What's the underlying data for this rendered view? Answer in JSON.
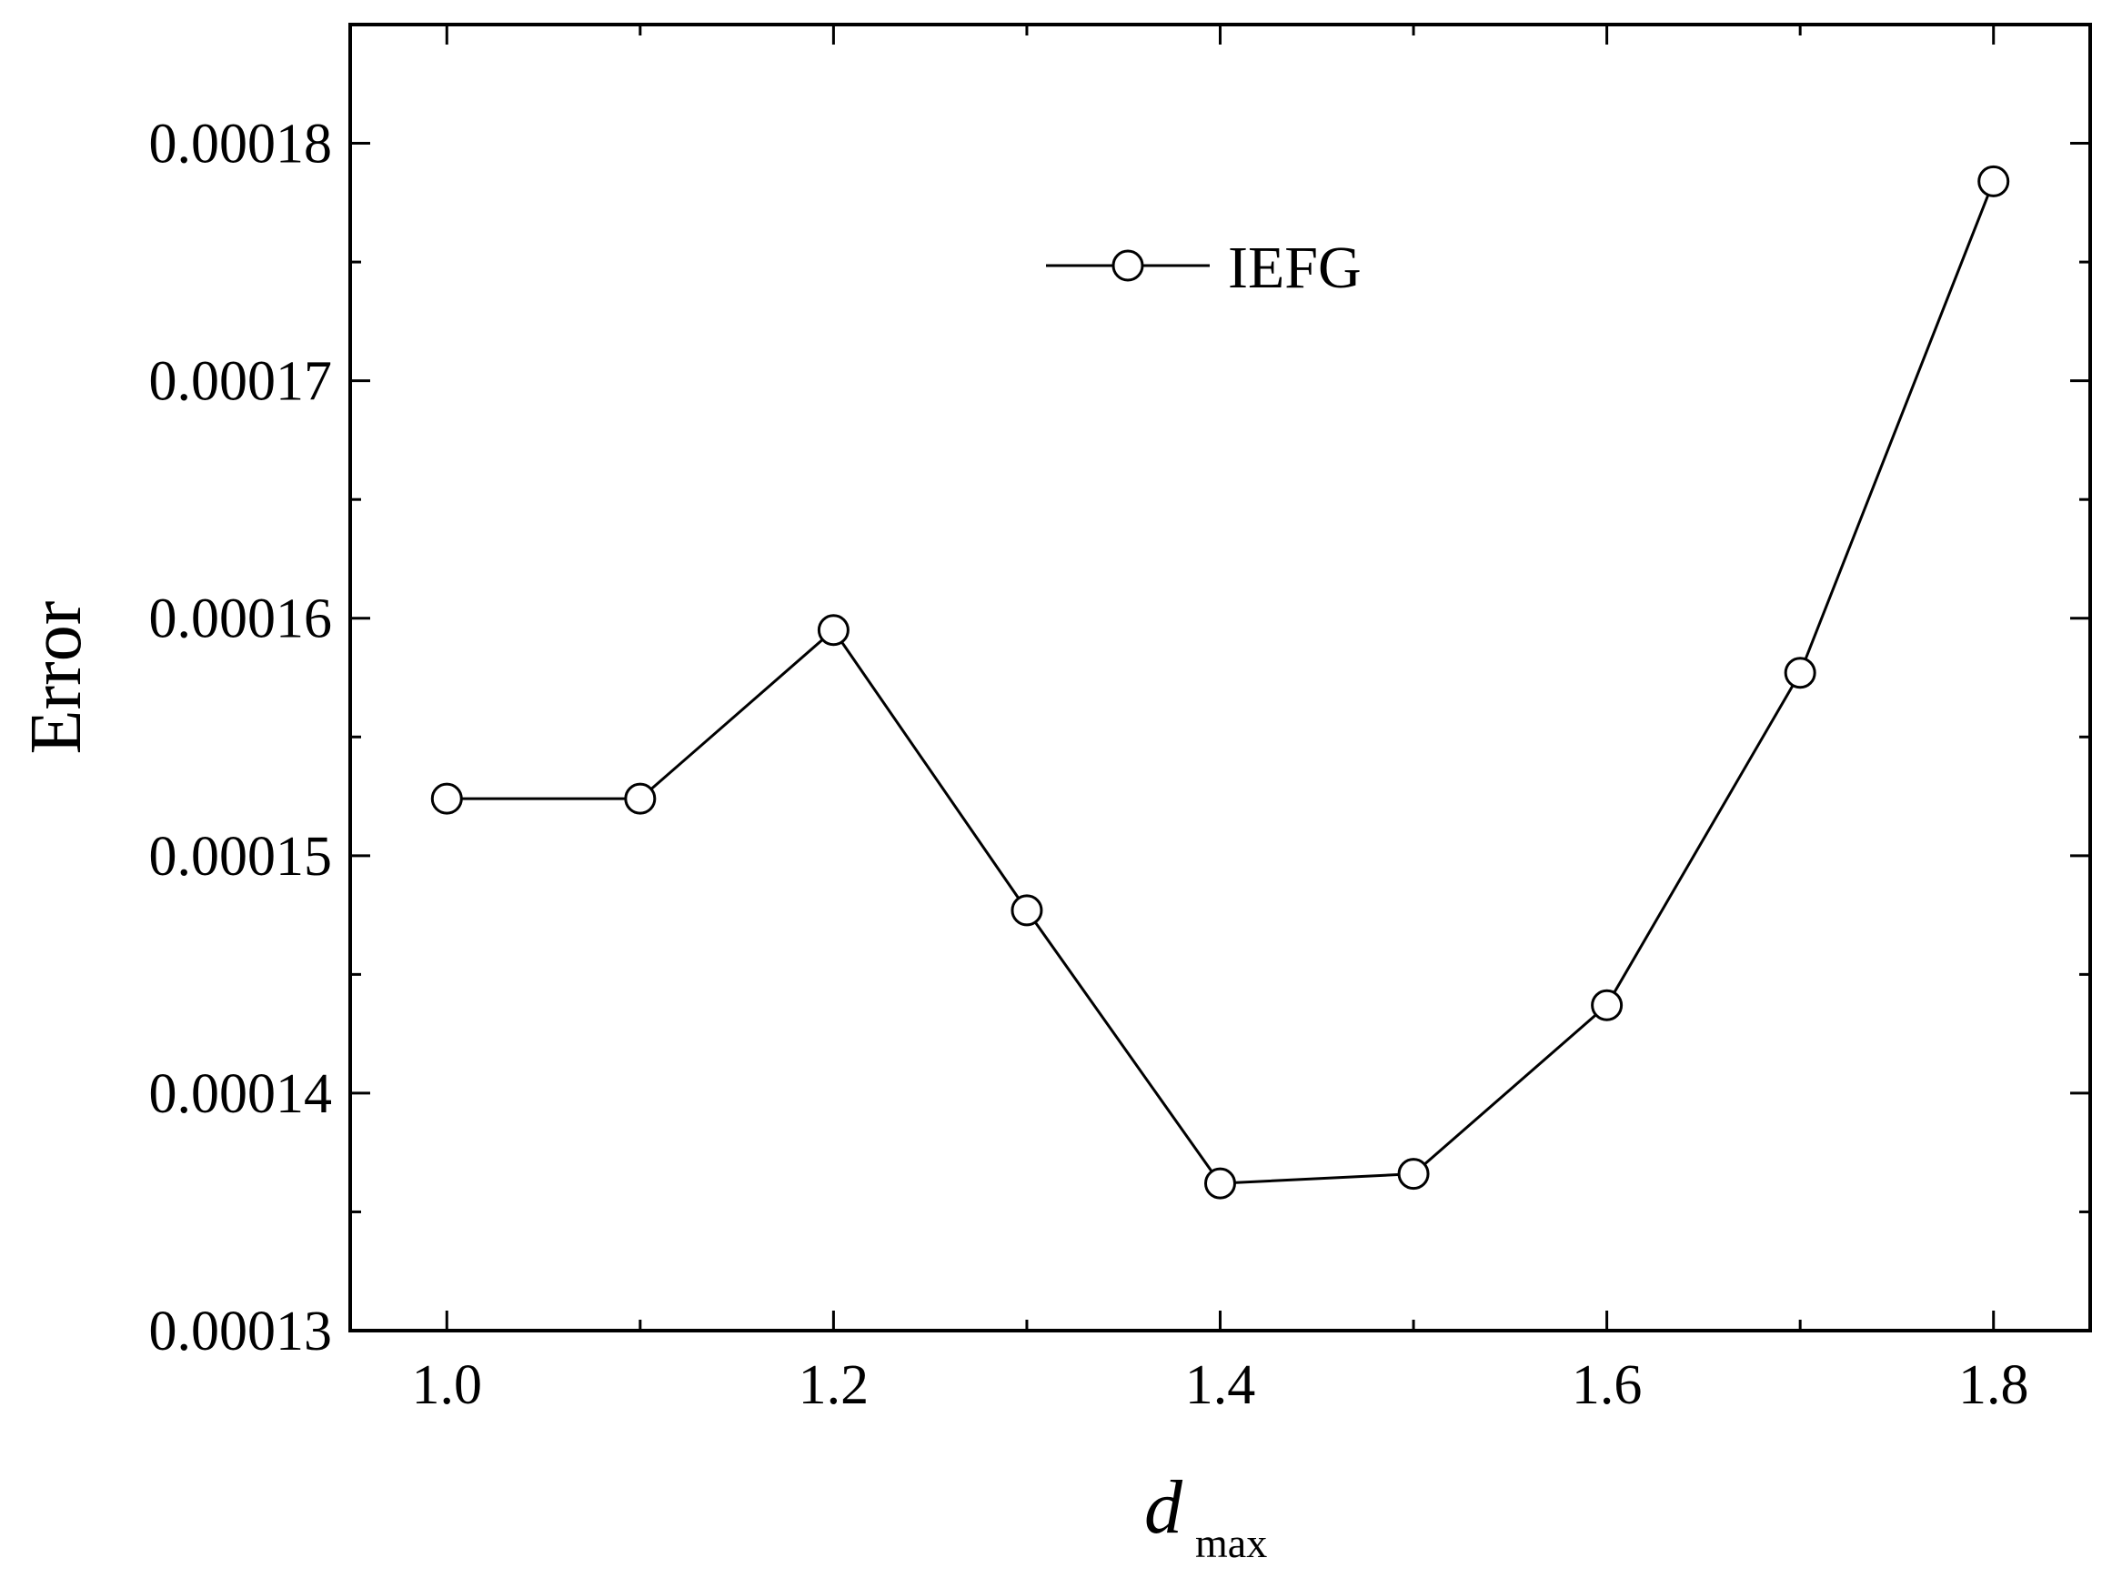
{
  "chart_data": {
    "type": "line",
    "title": "",
    "xlabel": "d",
    "xlabel_sub": "max",
    "ylabel": "Error",
    "xlim": [
      0.95,
      1.85
    ],
    "ylim": [
      0.00013,
      0.000185
    ],
    "x_ticks": [
      1.0,
      1.2,
      1.4,
      1.6,
      1.8
    ],
    "x_tick_labels": [
      "1.0",
      "1.2",
      "1.4",
      "1.6",
      "1.8"
    ],
    "x_minor_ticks": [
      1.1,
      1.3,
      1.5,
      1.7
    ],
    "y_ticks": [
      0.00013,
      0.00014,
      0.00015,
      0.00016,
      0.00017,
      0.00018
    ],
    "y_tick_labels": [
      "0.00013",
      "0.00014",
      "0.00015",
      "0.00016",
      "0.00017",
      "0.00018"
    ],
    "y_minor_ticks": [
      0.000135,
      0.000145,
      0.000155,
      0.000165,
      0.000175
    ],
    "grid": false,
    "legend_position": "top-center",
    "series": [
      {
        "name": "IEFG",
        "marker": "open-circle",
        "color": "#000000",
        "x": [
          1.0,
          1.1,
          1.2,
          1.3,
          1.4,
          1.5,
          1.6,
          1.7,
          1.8
        ],
        "y": [
          0.0001524,
          0.0001524,
          0.0001595,
          0.0001477,
          0.0001362,
          0.0001366,
          0.0001437,
          0.0001577,
          0.0001784
        ]
      }
    ]
  }
}
